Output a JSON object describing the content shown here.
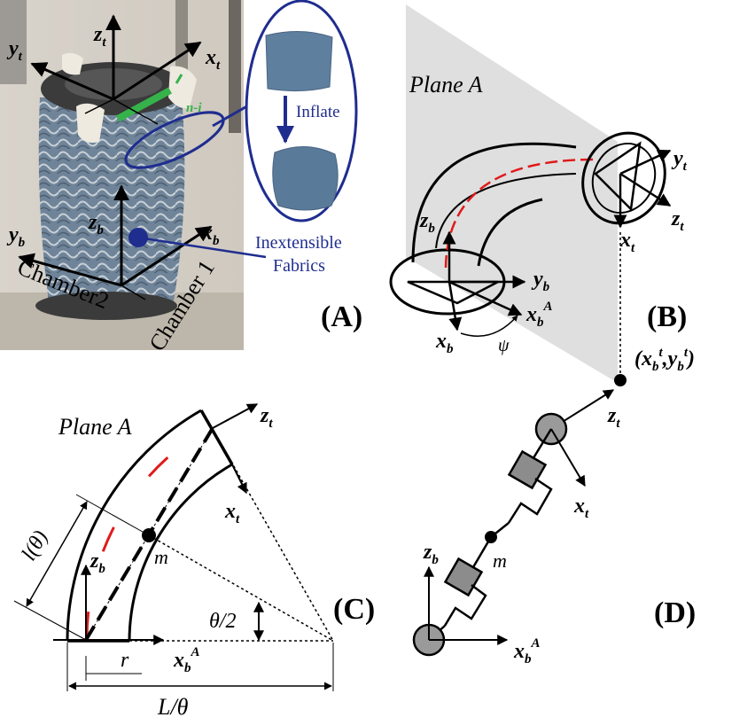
{
  "panels": {
    "a": "(A)",
    "b": "(B)",
    "c": "(C)",
    "d": "(D)"
  },
  "photo": {
    "axes": {
      "zt": "z",
      "zt_sub": "t",
      "yt": "y",
      "yt_sub": "t",
      "xt": "x",
      "xt_sub": "t",
      "zb": "z",
      "zb_sub": "b",
      "yb": "y",
      "yb_sub": "b",
      "xb": "x",
      "xb_sub": "b"
    },
    "chamber1": "Chamber 1",
    "chamber2": "Chamber2",
    "green_label": "n-i",
    "inflate": "Inflate",
    "fabrics_line1": "Inextensible",
    "fabrics_line2": "Fabrics"
  },
  "panel_b": {
    "plane": "Plane A",
    "zb": "z",
    "zb_sub": "b",
    "yb": "y",
    "yb_sub": "b",
    "xb": "x",
    "xb_sub": "b",
    "xbA": "x",
    "xbA_sub": "b",
    "xbA_sup": "A",
    "psi": "ψ",
    "yt": "y",
    "yt_sub": "t",
    "zt": "z",
    "zt_sub": "t",
    "xt": "x",
    "xt_sub": "t",
    "proj_open": "(",
    "proj_x": "x",
    "proj_x_sub": "b",
    "proj_x_sup": "t",
    "proj_comma": ",",
    "proj_y": "y",
    "proj_y_sub": "b",
    "proj_y_sup": "t",
    "proj_close": ")"
  },
  "panel_c": {
    "plane": "Plane A",
    "zt": "z",
    "zt_sub": "t",
    "xt": "x",
    "xt_sub": "t",
    "zb": "z",
    "zb_sub": "b",
    "xbA": "x",
    "xbA_sub": "b",
    "xbA_sup": "A",
    "m": "m",
    "l_theta": "l(θ)",
    "half_theta": "θ/2",
    "r": "r",
    "L_theta": "L/θ"
  },
  "panel_d": {
    "zt": "z",
    "zt_sub": "t",
    "xt": "x",
    "xt_sub": "t",
    "zb": "z",
    "zb_sub": "b",
    "xbA": "x",
    "xbA_sub": "b",
    "xbA_sup": "A",
    "m": "m"
  }
}
